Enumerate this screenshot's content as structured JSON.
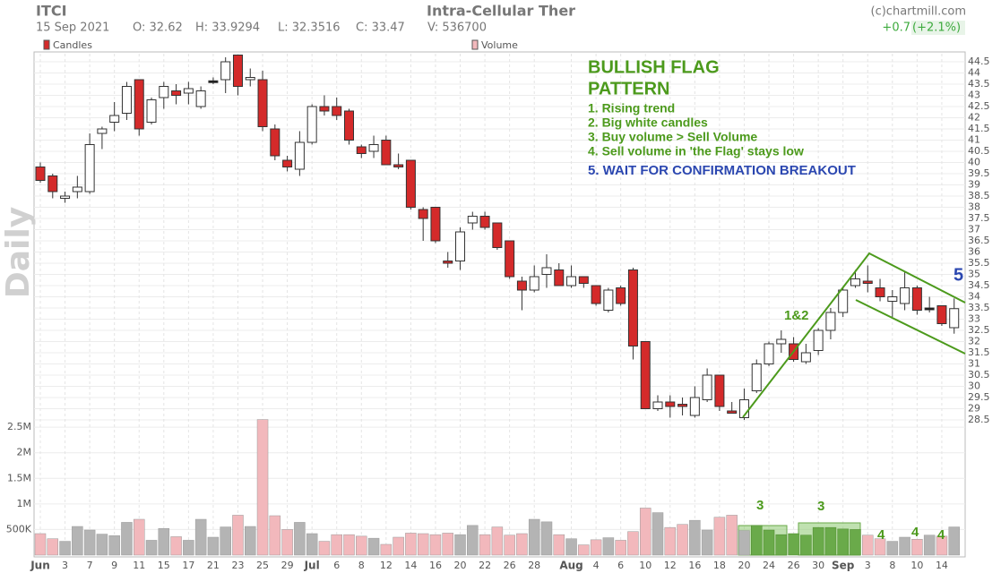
{
  "header": {
    "ticker": "ITCI",
    "name": "Intra-Cellular Ther",
    "source": "(c)chartmill.com",
    "date": "15 Sep 2021",
    "open": "O: 32.62",
    "high": "H: 33.9294",
    "low": "L: 32.3516",
    "close": "C: 33.47",
    "volume": "V: 536700",
    "change": "+0.7",
    "change_pct": "(+2.1%)"
  },
  "chart_data": [
    {
      "type": "candlestick",
      "legend": "Candles",
      "watermark": "Daily",
      "up_color": "#ffffff",
      "down_color": "#d42a2a",
      "categories": [
        "Jun",
        null,
        "3",
        null,
        "7",
        null,
        "9",
        null,
        "11",
        null,
        "15",
        null,
        "17",
        null,
        "21",
        null,
        "23",
        null,
        "25",
        null,
        "29",
        null,
        "Jul",
        null,
        "6",
        null,
        "8",
        null,
        "12",
        null,
        "14",
        null,
        "16",
        null,
        "20",
        null,
        "22",
        null,
        "26",
        null,
        "28",
        null,
        null,
        "Aug",
        null,
        "4",
        null,
        "6",
        null,
        "10",
        null,
        "12",
        null,
        "16",
        null,
        "18",
        null,
        "20",
        null,
        "24",
        null,
        "26",
        null,
        "30",
        null,
        "Sep",
        null,
        "3",
        null,
        "8",
        null,
        "10",
        null,
        "14",
        null
      ],
      "open": [
        39.8,
        39.4,
        38.4,
        38.7,
        38.7,
        41.3,
        41.8,
        42.2,
        43.7,
        41.8,
        42.9,
        43.2,
        43.1,
        42.5,
        43.65,
        43.7,
        44.8,
        43.7,
        43.7,
        41.5,
        40.1,
        39.7,
        40.9,
        42.5,
        42.5,
        42.3,
        40.7,
        40.5,
        41.0,
        39.9,
        40.1,
        37.9,
        38.0,
        35.6,
        35.6,
        37.3,
        37.6,
        37.3,
        36.5,
        34.7,
        34.3,
        35.0,
        35.2,
        34.5,
        34.9,
        34.5,
        33.4,
        34.4,
        35.2,
        32.0,
        29.0,
        29.3,
        29.2,
        28.7,
        29.4,
        30.5,
        28.9,
        28.6,
        29.8,
        31.0,
        31.9,
        31.9,
        31.1,
        31.6,
        32.5,
        33.3,
        34.5,
        34.7,
        34.4,
        33.8,
        33.7,
        34.4,
        33.5,
        33.6,
        32.62
      ],
      "high": [
        40.0,
        39.5,
        38.7,
        39.4,
        41.3,
        41.6,
        42.7,
        43.6,
        43.7,
        42.9,
        43.6,
        43.5,
        43.6,
        43.4,
        43.8,
        44.7,
        44.8,
        44.2,
        44.1,
        41.7,
        40.3,
        41.4,
        42.6,
        43.0,
        42.9,
        42.4,
        40.8,
        41.2,
        41.2,
        40.4,
        40.1,
        38.0,
        38.0,
        36.0,
        37.1,
        37.8,
        37.8,
        37.3,
        36.5,
        34.9,
        35.4,
        35.9,
        35.5,
        35.4,
        34.9,
        34.5,
        34.4,
        34.5,
        35.3,
        32.0,
        29.6,
        29.6,
        29.5,
        30.0,
        30.8,
        30.5,
        29.3,
        29.9,
        31.2,
        32.0,
        32.5,
        32.2,
        31.9,
        32.6,
        33.5,
        34.4,
        35.2,
        35.4,
        34.8,
        34.3,
        35.1,
        34.5,
        34.0,
        33.6,
        33.9294
      ],
      "low": [
        39.1,
        38.4,
        38.2,
        38.4,
        38.6,
        40.6,
        41.4,
        41.9,
        41.2,
        41.7,
        42.4,
        42.6,
        42.6,
        42.4,
        43.5,
        43.1,
        43.0,
        43.4,
        41.4,
        40.1,
        39.6,
        39.4,
        40.8,
        42.1,
        41.9,
        40.8,
        40.2,
        40.2,
        39.9,
        39.7,
        37.9,
        36.5,
        36.4,
        35.3,
        35.2,
        37.0,
        37.0,
        36.1,
        34.8,
        33.4,
        34.2,
        34.4,
        34.5,
        34.4,
        34.4,
        33.6,
        33.3,
        33.6,
        31.2,
        29.0,
        28.9,
        28.6,
        28.7,
        28.6,
        29.3,
        28.9,
        28.8,
        28.5,
        29.7,
        30.9,
        31.5,
        31.1,
        31.0,
        31.4,
        32.1,
        33.1,
        34.4,
        34.2,
        33.8,
        33.1,
        33.4,
        33.2,
        33.3,
        32.7,
        32.3516
      ],
      "close": [
        39.2,
        38.7,
        38.5,
        38.9,
        40.8,
        41.5,
        42.1,
        43.4,
        41.5,
        42.8,
        43.4,
        43.0,
        43.3,
        43.2,
        43.65,
        44.5,
        43.4,
        43.8,
        41.6,
        40.3,
        39.8,
        40.9,
        42.5,
        42.3,
        42.1,
        41.0,
        40.4,
        40.8,
        39.9,
        39.8,
        38.0,
        37.5,
        36.5,
        35.5,
        36.9,
        37.6,
        37.1,
        36.2,
        34.9,
        34.3,
        34.9,
        35.3,
        34.5,
        34.9,
        34.6,
        33.7,
        34.3,
        33.7,
        31.8,
        29.0,
        29.3,
        29.1,
        29.1,
        29.5,
        30.5,
        29.1,
        28.8,
        29.4,
        31.0,
        31.9,
        32.1,
        31.2,
        31.5,
        32.5,
        33.3,
        34.3,
        34.8,
        34.6,
        34.0,
        34.0,
        34.4,
        33.4,
        33.5,
        32.8,
        33.47
      ],
      "ylim": [
        28.3,
        44.86
      ],
      "yticks": [
        28.5,
        29,
        29.5,
        30,
        30.5,
        31,
        31.5,
        32,
        32.5,
        33,
        33.5,
        34,
        34.5,
        35,
        35.5,
        36,
        36.5,
        37,
        37.5,
        38,
        38.5,
        39,
        39.5,
        40,
        40.5,
        41,
        41.5,
        42,
        42.5,
        43,
        43.5,
        44,
        44.5
      ],
      "grid": true,
      "annotations": [
        {
          "text": "BULLISH FLAG",
          "color": "#4c9a1c"
        },
        {
          "text": "PATTERN",
          "color": "#4c9a1c"
        },
        {
          "text": "1. Rising trend",
          "color": "#4c9a1c"
        },
        {
          "text": "2. Big white candles",
          "color": "#4c9a1c"
        },
        {
          "text": "3. Buy volume > Sell Volume",
          "color": "#4c9a1c"
        },
        {
          "text": "4. Sell volume in 'the Flag' stays low",
          "color": "#4c9a1c"
        },
        {
          "text": "5. WAIT FOR CONFIRMATION BREAKOUT",
          "color": "#2b47b0"
        },
        {
          "text": "1&2",
          "color": "#4c9a1c"
        },
        {
          "text": "5",
          "color": "#2b47b0"
        },
        {
          "text": "3",
          "color": "#4c9a1c"
        },
        {
          "text": "3",
          "color": "#4c9a1c"
        },
        {
          "text": "4",
          "color": "#4c9a1c"
        },
        {
          "text": "4",
          "color": "#4c9a1c"
        },
        {
          "text": "4",
          "color": "#4c9a1c"
        }
      ]
    },
    {
      "type": "bar",
      "series": [
        {
          "name": "Volume",
          "up_color": "#b4b4b4",
          "down_color": "#f2b8bc",
          "highlight_color": "#6aaa4a",
          "values": [
            420000,
            320000,
            270000,
            560000,
            490000,
            410000,
            380000,
            640000,
            700000,
            290000,
            520000,
            360000,
            290000,
            700000,
            350000,
            550000,
            780000,
            560000,
            2650000,
            770000,
            500000,
            640000,
            420000,
            270000,
            400000,
            400000,
            370000,
            330000,
            210000,
            350000,
            430000,
            420000,
            400000,
            430000,
            400000,
            580000,
            400000,
            550000,
            390000,
            420000,
            700000,
            650000,
            400000,
            320000,
            200000,
            300000,
            340000,
            290000,
            460000,
            920000,
            830000,
            540000,
            600000,
            680000,
            490000,
            740000,
            780000,
            480000,
            580000,
            490000,
            400000,
            420000,
            390000,
            540000,
            540000,
            510000,
            500000,
            390000,
            320000,
            270000,
            350000,
            310000,
            390000,
            370000,
            550000
          ]
        }
      ],
      "ylim": [
        0,
        2800000
      ],
      "yticks": [
        {
          "value": 500000,
          "label": "500K"
        },
        {
          "value": 1000000,
          "label": "1M"
        },
        {
          "value": 1500000,
          "label": "1.5M"
        },
        {
          "value": 2000000,
          "label": "2M"
        },
        {
          "value": 2500000,
          "label": "2.5M"
        }
      ]
    }
  ]
}
